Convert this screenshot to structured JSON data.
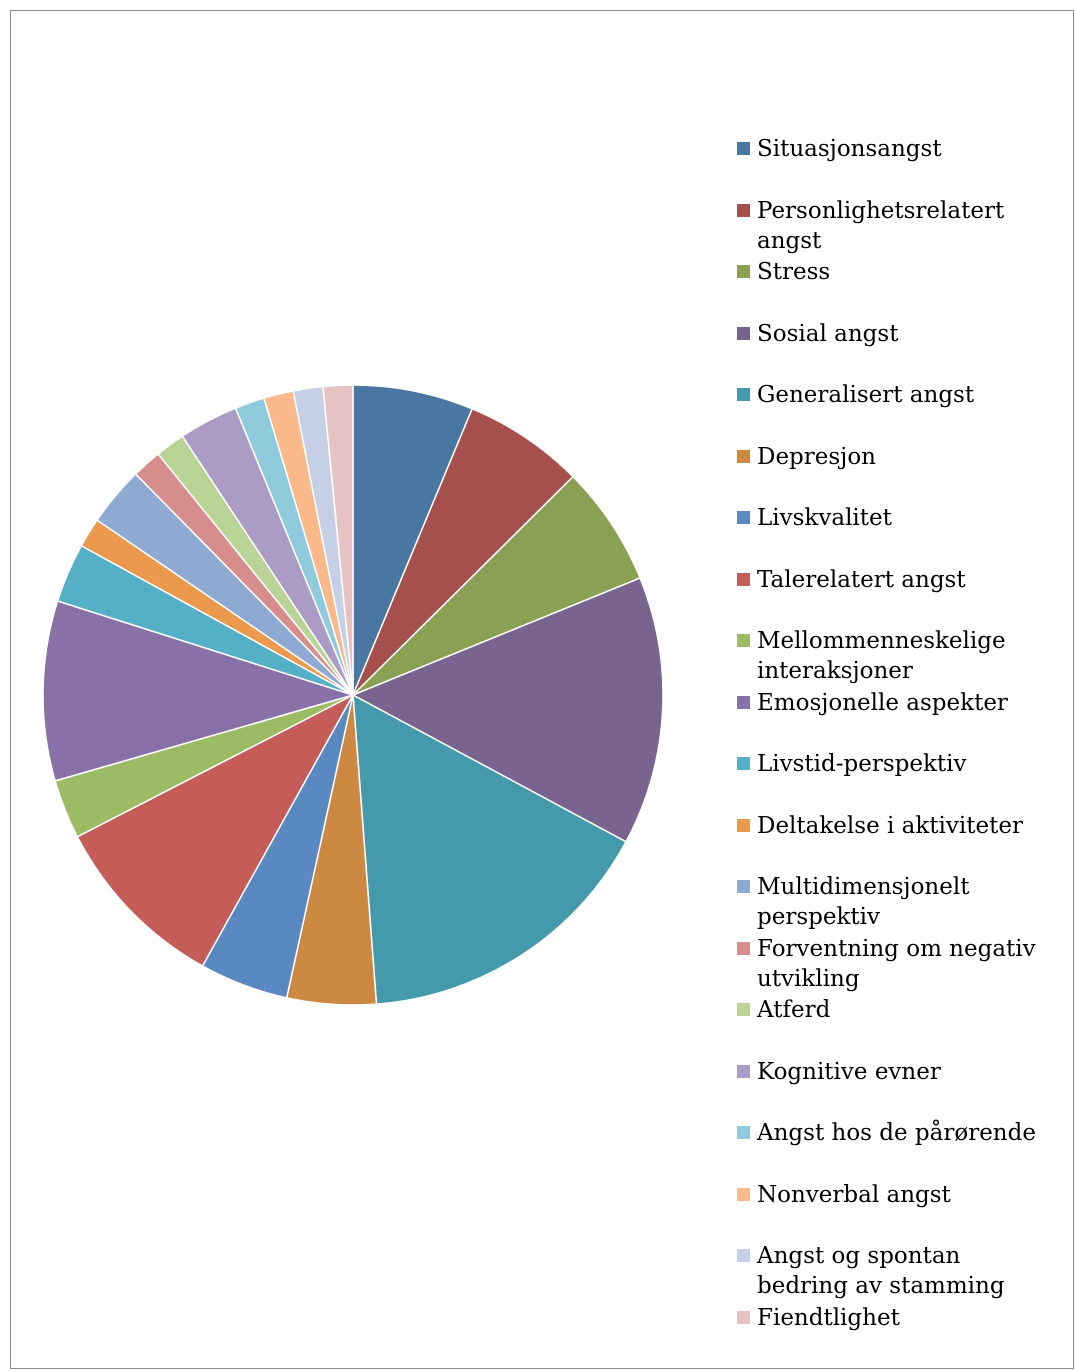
{
  "chart_data": {
    "type": "pie",
    "title": "",
    "legend_position": "right",
    "slices": [
      {
        "label": "Situasjonsangst",
        "value": 6.5,
        "color": "#4a76a2"
      },
      {
        "label": "Personlighetsrelatert angst",
        "value": 6.5,
        "color": "#a5504c"
      },
      {
        "label": "Stress",
        "value": 6.5,
        "color": "#8aa153"
      },
      {
        "label": "Sosial angst",
        "value": 14.5,
        "color": "#79638f"
      },
      {
        "label": "Generalisert angst",
        "value": 16.5,
        "color": "#4499ab"
      },
      {
        "label": "Depresjon",
        "value": 4.8,
        "color": "#cd8842"
      },
      {
        "label": "Livskvalitet",
        "value": 4.8,
        "color": "#5a88c0"
      },
      {
        "label": "Talerelatert angst",
        "value": 9.7,
        "color": "#c45d58"
      },
      {
        "label": "Mellommenneskelige interaksjoner",
        "value": 3.2,
        "color": "#9bbb64"
      },
      {
        "label": "Emosjonelle aspekter",
        "value": 9.7,
        "color": "#8771a7"
      },
      {
        "label": "Livstid-perspektiv",
        "value": 3.2,
        "color": "#53b0c6"
      },
      {
        "label": "Deltakelse i aktiviteter",
        "value": 1.6,
        "color": "#eb9a4d"
      },
      {
        "label": "Multidimensjonelt perspektiv",
        "value": 3.2,
        "color": "#8eaad2"
      },
      {
        "label": "Forventning om negativ utvikling",
        "value": 1.6,
        "color": "#d68e8c"
      },
      {
        "label": "Atferd",
        "value": 1.6,
        "color": "#bad498"
      },
      {
        "label": "Kognitive evner",
        "value": 3.2,
        "color": "#aa9cc4"
      },
      {
        "label": "Angst hos de pårørende",
        "value": 1.6,
        "color": "#8fcbdc"
      },
      {
        "label": "Nonverbal angst",
        "value": 1.6,
        "color": "#f9b98a"
      },
      {
        "label": "Angst og spontan bedring av stamming",
        "value": 1.6,
        "color": "#c5cfe5"
      },
      {
        "label": "Fiendtlighet",
        "value": 1.6,
        "color": "#e6c2c2"
      }
    ]
  }
}
